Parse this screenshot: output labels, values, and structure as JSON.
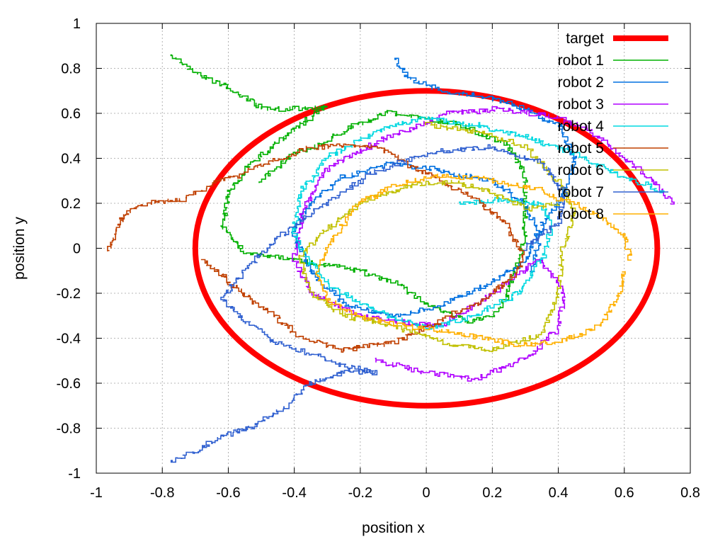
{
  "chart_data": {
    "type": "line",
    "title": "",
    "xlabel": "position x",
    "ylabel": "position y",
    "xlim": [
      -1,
      0.8
    ],
    "ylim": [
      -1,
      1
    ],
    "x_ticks": [
      "-1",
      "-0.8",
      "-0.6",
      "-0.4",
      "-0.2",
      "0",
      "0.2",
      "0.4",
      "0.6",
      "0.8"
    ],
    "x_tick_values": [
      -1,
      -0.8,
      -0.6,
      -0.4,
      -0.2,
      0,
      0.2,
      0.4,
      0.6,
      0.8
    ],
    "y_ticks": [
      "1",
      "0.8",
      "0.6",
      "0.4",
      "0.2",
      "0",
      "-0.2",
      "-0.4",
      "-0.6",
      "-0.8",
      "-1"
    ],
    "y_tick_values": [
      1,
      0.8,
      0.6,
      0.4,
      0.2,
      0,
      -0.2,
      -0.4,
      -0.6,
      -0.8,
      -1
    ],
    "grid": true,
    "legend_position": "top-right",
    "target": {
      "name": "target",
      "color": "#ff0000",
      "center": [
        0,
        0
      ],
      "rx": 0.7,
      "ry": 0.7
    },
    "series": [
      {
        "name": "robot 1",
        "color": "#00b000",
        "seed": 11,
        "waypoints": [
          [
            -0.77,
            0.86
          ],
          [
            -0.7,
            0.78
          ],
          [
            -0.6,
            0.72
          ],
          [
            -0.5,
            0.63
          ],
          [
            -0.4,
            0.62
          ],
          [
            -0.3,
            0.63
          ],
          [
            -0.38,
            0.55
          ],
          [
            -0.55,
            0.35
          ],
          [
            -0.6,
            0.25
          ],
          [
            -0.62,
            0.1
          ],
          [
            -0.55,
            -0.02
          ],
          [
            -0.4,
            -0.05
          ],
          [
            -0.2,
            -0.1
          ],
          [
            -0.1,
            -0.15
          ],
          [
            0.0,
            -0.25
          ],
          [
            0.12,
            -0.32
          ],
          [
            0.2,
            -0.3
          ],
          [
            0.25,
            -0.2
          ],
          [
            0.3,
            0.05
          ],
          [
            0.3,
            0.3
          ],
          [
            0.25,
            0.45
          ],
          [
            0.1,
            0.55
          ],
          [
            -0.1,
            0.6
          ],
          [
            -0.2,
            0.55
          ],
          [
            -0.3,
            0.48
          ],
          [
            -0.4,
            0.42
          ],
          [
            -0.5,
            0.3
          ]
        ]
      },
      {
        "name": "robot 2",
        "color": "#0070e0",
        "seed": 23,
        "waypoints": [
          [
            -0.09,
            0.84
          ],
          [
            -0.05,
            0.75
          ],
          [
            0.05,
            0.7
          ],
          [
            0.15,
            0.68
          ],
          [
            0.3,
            0.62
          ],
          [
            0.4,
            0.55
          ],
          [
            0.45,
            0.4
          ],
          [
            0.42,
            0.25
          ],
          [
            0.35,
            0.1
          ],
          [
            0.3,
            -0.05
          ],
          [
            0.2,
            -0.15
          ],
          [
            0.05,
            -0.25
          ],
          [
            -0.1,
            -0.3
          ],
          [
            -0.25,
            -0.25
          ],
          [
            -0.35,
            -0.1
          ],
          [
            -0.4,
            0.05
          ],
          [
            -0.35,
            0.2
          ],
          [
            -0.25,
            0.32
          ],
          [
            -0.1,
            0.38
          ],
          [
            0.05,
            0.35
          ],
          [
            0.2,
            0.3
          ],
          [
            0.3,
            0.2
          ],
          [
            0.35,
            0.05
          ],
          [
            0.32,
            -0.1
          ]
        ]
      },
      {
        "name": "robot 3",
        "color": "#b000ff",
        "seed": 37,
        "waypoints": [
          [
            0.75,
            0.2
          ],
          [
            0.7,
            0.28
          ],
          [
            0.6,
            0.4
          ],
          [
            0.5,
            0.52
          ],
          [
            0.35,
            0.6
          ],
          [
            0.2,
            0.62
          ],
          [
            0.05,
            0.6
          ],
          [
            -0.1,
            0.5
          ],
          [
            -0.3,
            0.35
          ],
          [
            -0.38,
            0.15
          ],
          [
            -0.4,
            -0.05
          ],
          [
            -0.35,
            -0.2
          ],
          [
            -0.2,
            -0.3
          ],
          [
            -0.05,
            -0.33
          ],
          [
            0.05,
            -0.35
          ],
          [
            0.15,
            -0.25
          ],
          [
            0.25,
            -0.15
          ],
          [
            0.35,
            -0.05
          ],
          [
            0.42,
            -0.2
          ],
          [
            0.4,
            -0.35
          ],
          [
            0.3,
            -0.5
          ],
          [
            0.15,
            -0.58
          ],
          [
            0.0,
            -0.55
          ],
          [
            -0.15,
            -0.5
          ]
        ]
      },
      {
        "name": "robot 4",
        "color": "#00d8e0",
        "seed": 41,
        "waypoints": [
          [
            0.72,
            0.25
          ],
          [
            0.6,
            0.32
          ],
          [
            0.45,
            0.42
          ],
          [
            0.3,
            0.5
          ],
          [
            0.15,
            0.55
          ],
          [
            0.0,
            0.58
          ],
          [
            -0.15,
            0.52
          ],
          [
            -0.3,
            0.4
          ],
          [
            -0.38,
            0.25
          ],
          [
            -0.4,
            0.1
          ],
          [
            -0.36,
            -0.05
          ],
          [
            -0.28,
            -0.18
          ],
          [
            -0.15,
            -0.28
          ],
          [
            0.0,
            -0.35
          ],
          [
            0.15,
            -0.3
          ],
          [
            0.28,
            -0.2
          ],
          [
            0.35,
            -0.05
          ],
          [
            0.38,
            0.1
          ],
          [
            0.35,
            0.2
          ],
          [
            0.2,
            0.22
          ],
          [
            0.1,
            0.2
          ]
        ]
      },
      {
        "name": "robot 5",
        "color": "#c04000",
        "seed": 53,
        "waypoints": [
          [
            -0.96,
            -0.01
          ],
          [
            -0.92,
            0.15
          ],
          [
            -0.85,
            0.2
          ],
          [
            -0.75,
            0.22
          ],
          [
            -0.65,
            0.28
          ],
          [
            -0.55,
            0.33
          ],
          [
            -0.45,
            0.4
          ],
          [
            -0.35,
            0.45
          ],
          [
            -0.25,
            0.46
          ],
          [
            -0.15,
            0.45
          ],
          [
            -0.05,
            0.38
          ],
          [
            0.05,
            0.3
          ],
          [
            0.15,
            0.22
          ],
          [
            0.25,
            0.1
          ],
          [
            0.3,
            -0.05
          ],
          [
            0.25,
            -0.15
          ],
          [
            0.15,
            -0.25
          ],
          [
            0.05,
            -0.32
          ],
          [
            -0.1,
            -0.42
          ],
          [
            -0.25,
            -0.45
          ],
          [
            -0.4,
            -0.38
          ],
          [
            -0.5,
            -0.25
          ],
          [
            -0.6,
            -0.15
          ],
          [
            -0.68,
            -0.05
          ]
        ]
      },
      {
        "name": "robot 6",
        "color": "#c0c000",
        "seed": 61,
        "waypoints": [
          [
            0.0,
            0.55
          ],
          [
            0.15,
            0.52
          ],
          [
            0.3,
            0.45
          ],
          [
            0.4,
            0.3
          ],
          [
            0.45,
            0.15
          ],
          [
            0.42,
            0.0
          ],
          [
            0.4,
            -0.2
          ],
          [
            0.35,
            -0.38
          ],
          [
            0.2,
            -0.45
          ],
          [
            0.05,
            -0.42
          ],
          [
            -0.1,
            -0.35
          ],
          [
            -0.25,
            -0.3
          ],
          [
            -0.35,
            -0.2
          ],
          [
            -0.38,
            -0.05
          ],
          [
            -0.3,
            0.1
          ],
          [
            -0.2,
            0.2
          ],
          [
            -0.05,
            0.28
          ],
          [
            0.1,
            0.3
          ],
          [
            0.2,
            0.25
          ],
          [
            0.3,
            0.18
          ],
          [
            0.4,
            0.2
          ]
        ]
      },
      {
        "name": "robot 7",
        "color": "#3060d0",
        "seed": 71,
        "waypoints": [
          [
            -0.77,
            -0.95
          ],
          [
            -0.7,
            -0.9
          ],
          [
            -0.6,
            -0.82
          ],
          [
            -0.5,
            -0.78
          ],
          [
            -0.42,
            -0.7
          ],
          [
            -0.35,
            -0.6
          ],
          [
            -0.25,
            -0.55
          ],
          [
            -0.15,
            -0.55
          ],
          [
            -0.3,
            -0.5
          ],
          [
            -0.45,
            -0.42
          ],
          [
            -0.55,
            -0.32
          ],
          [
            -0.62,
            -0.22
          ],
          [
            -0.55,
            -0.1
          ],
          [
            -0.45,
            0.05
          ],
          [
            -0.35,
            0.15
          ],
          [
            -0.25,
            0.25
          ],
          [
            -0.15,
            0.35
          ],
          [
            0.0,
            0.42
          ],
          [
            0.2,
            0.45
          ],
          [
            0.35,
            0.38
          ],
          [
            0.42,
            0.25
          ],
          [
            0.4,
            0.1
          ],
          [
            0.3,
            0.0
          ]
        ]
      },
      {
        "name": "robot 8",
        "color": "#ffb000",
        "seed": 83,
        "waypoints": [
          [
            0.62,
            -0.05
          ],
          [
            0.6,
            0.05
          ],
          [
            0.55,
            0.12
          ],
          [
            0.45,
            0.2
          ],
          [
            0.35,
            0.25
          ],
          [
            0.2,
            0.3
          ],
          [
            0.05,
            0.32
          ],
          [
            -0.1,
            0.28
          ],
          [
            -0.2,
            0.2
          ],
          [
            -0.28,
            0.05
          ],
          [
            -0.33,
            -0.1
          ],
          [
            -0.3,
            -0.22
          ],
          [
            -0.2,
            -0.3
          ],
          [
            -0.05,
            -0.35
          ],
          [
            0.1,
            -0.38
          ],
          [
            0.25,
            -0.42
          ],
          [
            0.4,
            -0.42
          ],
          [
            0.52,
            -0.35
          ],
          [
            0.58,
            -0.22
          ],
          [
            0.6,
            -0.1
          ]
        ]
      }
    ]
  }
}
